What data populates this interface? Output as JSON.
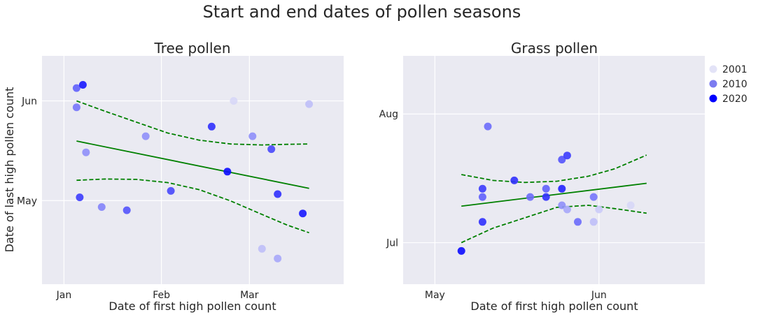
{
  "figure": {
    "suptitle": "Start and end dates of pollen seasons"
  },
  "legend": {
    "placement": "right",
    "entries": [
      {
        "label": "2001",
        "color": "#e3e3f7"
      },
      {
        "label": "2010",
        "color": "#7b7bf0"
      },
      {
        "label": "2020",
        "color": "#0000ff"
      }
    ]
  },
  "colors": {
    "background": "#eaeaf2",
    "grid": "#ffffff",
    "fit_line": "#008000",
    "point_base": "#0000ff"
  },
  "chart_data": [
    {
      "type": "scatter",
      "title": "Tree pollen",
      "xlabel": "Date of first high pollen count",
      "ylabel": "Date of last high pollen count",
      "x_unit": "day of year",
      "y_unit": "day of year",
      "xlim": [
        -6,
        90
      ],
      "ylim": [
        95,
        166
      ],
      "xticks": [
        {
          "value": 1,
          "label": "Jan"
        },
        {
          "value": 32,
          "label": "Feb"
        },
        {
          "value": 60,
          "label": "Mar"
        }
      ],
      "yticks": [
        {
          "value": 121,
          "label": "May"
        },
        {
          "value": 152,
          "label": "Jun"
        }
      ],
      "grid": true,
      "points": [
        {
          "x": 5,
          "y": 156,
          "year": 2012
        },
        {
          "x": 7,
          "y": 157,
          "year": 2018
        },
        {
          "x": 5,
          "y": 150,
          "year": 2010
        },
        {
          "x": 8,
          "y": 136,
          "year": 2008
        },
        {
          "x": 6,
          "y": 122,
          "year": 2015
        },
        {
          "x": 13,
          "y": 119,
          "year": 2009
        },
        {
          "x": 21,
          "y": 118,
          "year": 2013
        },
        {
          "x": 27,
          "y": 141,
          "year": 2008
        },
        {
          "x": 35,
          "y": 124,
          "year": 2014
        },
        {
          "x": 48,
          "y": 144,
          "year": 2016
        },
        {
          "x": 53,
          "y": 130,
          "year": 2019
        },
        {
          "x": 55,
          "y": 152,
          "year": 2002
        },
        {
          "x": 61,
          "y": 141,
          "year": 2008
        },
        {
          "x": 64,
          "y": 106,
          "year": 2004
        },
        {
          "x": 67,
          "y": 137,
          "year": 2014
        },
        {
          "x": 69,
          "y": 123,
          "year": 2016
        },
        {
          "x": 69,
          "y": 103,
          "year": 2006
        },
        {
          "x": 77,
          "y": 117,
          "year": 2018
        },
        {
          "x": 79,
          "y": 151,
          "year": 2004
        }
      ],
      "fit_line": {
        "x": [
          5,
          79
        ],
        "y": [
          139.5,
          124.8
        ]
      },
      "ci_upper": [
        [
          5,
          152.0
        ],
        [
          14,
          148.8
        ],
        [
          24,
          145.4
        ],
        [
          34,
          142.0
        ],
        [
          44,
          139.8
        ],
        [
          54,
          138.6
        ],
        [
          64,
          138.3
        ],
        [
          72,
          138.5
        ],
        [
          79,
          138.6
        ]
      ],
      "ci_lower": [
        [
          5,
          127.3
        ],
        [
          14,
          127.7
        ],
        [
          24,
          127.6
        ],
        [
          34,
          126.6
        ],
        [
          44,
          124.4
        ],
        [
          54,
          120.9
        ],
        [
          64,
          116.7
        ],
        [
          72,
          113.4
        ],
        [
          79,
          111.0
        ]
      ]
    },
    {
      "type": "scatter",
      "title": "Grass pollen",
      "x_unit": "day of year",
      "y_unit": "day of year",
      "xlabel": "Date of first high pollen count",
      "xlim": [
        115,
        172
      ],
      "ylim": [
        172,
        227
      ],
      "xticks": [
        {
          "value": 121,
          "label": "May"
        },
        {
          "value": 152,
          "label": "Jun"
        }
      ],
      "yticks": [
        {
          "value": 182,
          "label": "Jul"
        },
        {
          "value": 213,
          "label": "Aug"
        }
      ],
      "grid": true,
      "points": [
        {
          "x": 126,
          "y": 180,
          "year": 2019
        },
        {
          "x": 130,
          "y": 193,
          "year": 2012
        },
        {
          "x": 130,
          "y": 195,
          "year": 2015
        },
        {
          "x": 130,
          "y": 187,
          "year": 2016
        },
        {
          "x": 131,
          "y": 210,
          "year": 2011
        },
        {
          "x": 136,
          "y": 197,
          "year": 2016
        },
        {
          "x": 139,
          "y": 193,
          "year": 2011
        },
        {
          "x": 142,
          "y": 195,
          "year": 2012
        },
        {
          "x": 142,
          "y": 193,
          "year": 2016
        },
        {
          "x": 145,
          "y": 195,
          "year": 2017
        },
        {
          "x": 145,
          "y": 191,
          "year": 2008
        },
        {
          "x": 145,
          "y": 202,
          "year": 2013
        },
        {
          "x": 146,
          "y": 203,
          "year": 2015
        },
        {
          "x": 146,
          "y": 190,
          "year": 2006
        },
        {
          "x": 148,
          "y": 187,
          "year": 2011
        },
        {
          "x": 151,
          "y": 187,
          "year": 2004
        },
        {
          "x": 151,
          "y": 193,
          "year": 2010
        },
        {
          "x": 152,
          "y": 190,
          "year": 2003
        },
        {
          "x": 158,
          "y": 191,
          "year": 2002
        }
      ],
      "fit_line": {
        "x": [
          126,
          161
        ],
        "y": [
          190.8,
          196.3
        ]
      },
      "ci_upper": [
        [
          126,
          198.4
        ],
        [
          132,
          197.0
        ],
        [
          138,
          196.5
        ],
        [
          144,
          196.8
        ],
        [
          150,
          198.0
        ],
        [
          155,
          199.8
        ],
        [
          161,
          203.1
        ]
      ],
      "ci_lower": [
        [
          126,
          182.0
        ],
        [
          132,
          185.5
        ],
        [
          138,
          188.0
        ],
        [
          144,
          190.5
        ],
        [
          150,
          191.0
        ],
        [
          155,
          190.2
        ],
        [
          161,
          189.1
        ]
      ]
    }
  ]
}
